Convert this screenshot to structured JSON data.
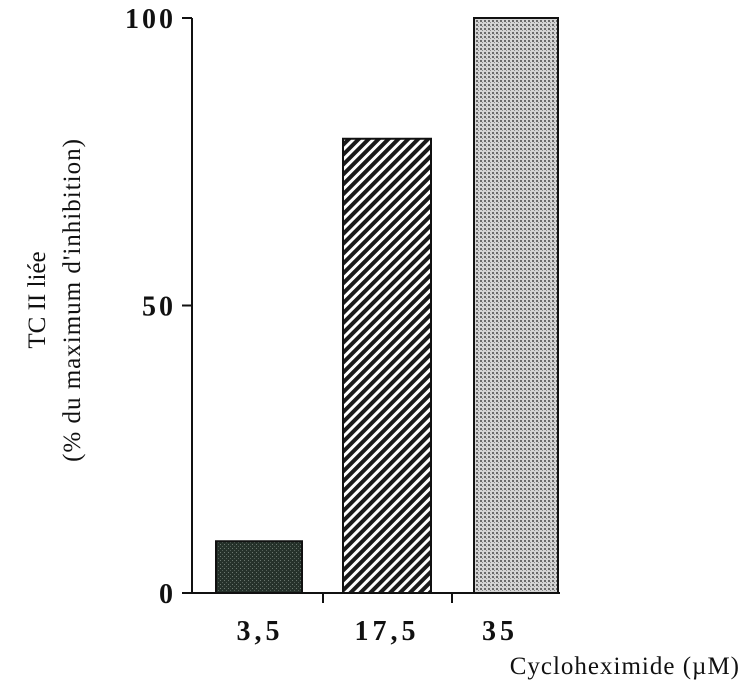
{
  "chart_data": {
    "type": "bar",
    "categories": [
      "3,5",
      "17,5",
      "35"
    ],
    "values": [
      9,
      79,
      100
    ],
    "title": "",
    "xlabel": "Cycloheximide  (µM)",
    "ylabel_line1": "TC II liée",
    "ylabel_line2": "(% du maximum d'inhibition)",
    "ylim": [
      0,
      100
    ],
    "yticks": [
      0,
      50,
      100
    ],
    "ytick_labels": [
      "0",
      "50",
      "100"
    ],
    "grid": false,
    "legend": "none",
    "bar_fills": [
      "dense-dark",
      "diagonal-hatch",
      "fine-stipple"
    ],
    "colors": {
      "ink": "#111111",
      "bar1": "#1f2a24",
      "bar2_stripe": "#1a1a1a",
      "bar3_dot": "#555555"
    }
  }
}
